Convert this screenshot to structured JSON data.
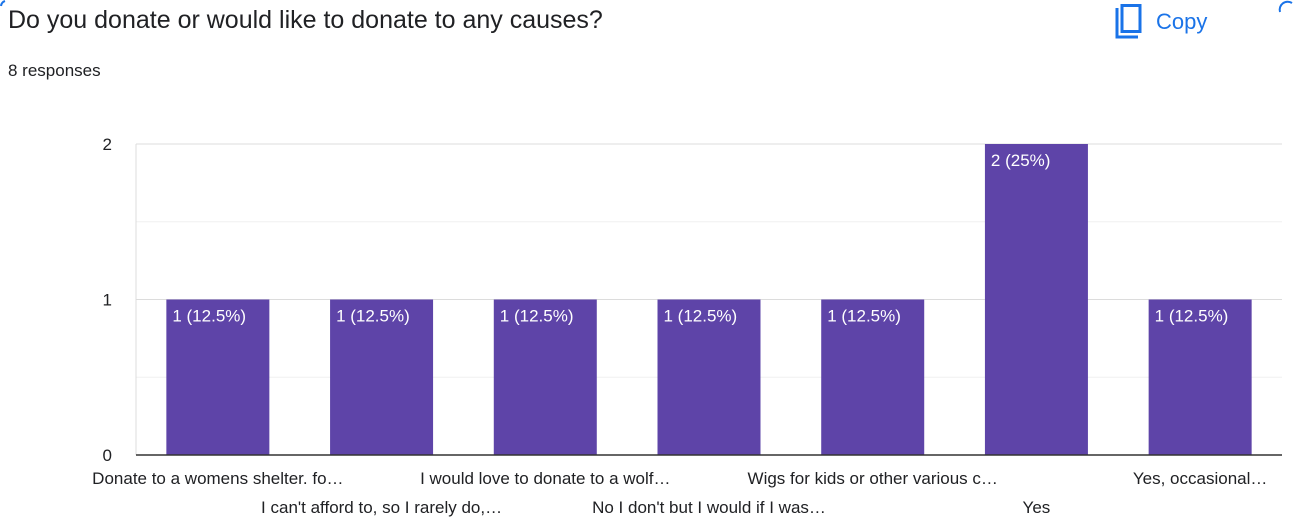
{
  "question": {
    "title": "Do you donate or would like to donate to any causes?",
    "responses": "8 responses"
  },
  "toolbar": {
    "copy_label": "Copy",
    "copy_icon": "copy-icon"
  },
  "colors": {
    "bar": "#5e44a8",
    "accent": "#1a73e8",
    "grid": "#e5e5e5",
    "axis": "#333333",
    "text": "#202124"
  },
  "chart_data": {
    "type": "bar",
    "categories": [
      "Donate to a womens shelter. fo…",
      "I can't afford to, so I rarely do,…",
      "I would love to donate to a wolf…",
      "No I don't but I would if I was…",
      "Wigs for kids or other various c…",
      "Yes",
      "Yes, occasional…"
    ],
    "values": [
      1,
      1,
      1,
      1,
      1,
      2,
      1
    ],
    "data_labels": [
      "1 (12.5%)",
      "1 (12.5%)",
      "1 (12.5%)",
      "1 (12.5%)",
      "1 (12.5%)",
      "2 (25%)",
      "1 (12.5%)"
    ],
    "yticks": [
      "0",
      "1",
      "2"
    ],
    "ylim": [
      0,
      2
    ],
    "grid": true,
    "title": "",
    "xlabel": "",
    "ylabel": ""
  }
}
